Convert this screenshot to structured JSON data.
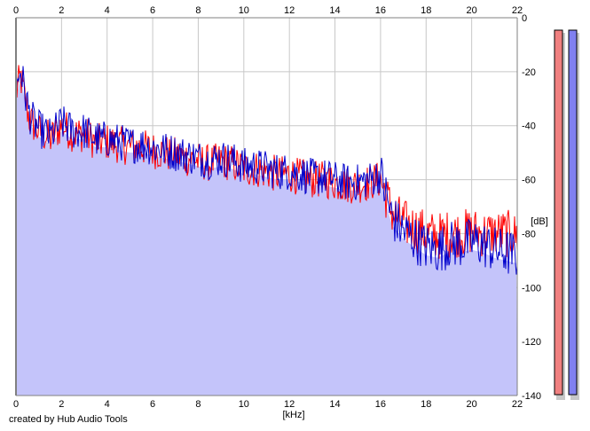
{
  "chart_data": {
    "type": "line",
    "xlabel": "[kHz]",
    "ylabel": "[dB]",
    "xlim": [
      0,
      22
    ],
    "ylim": [
      -140,
      0
    ],
    "xticks": [
      0,
      2,
      4,
      6,
      8,
      10,
      12,
      14,
      16,
      18,
      20,
      22
    ],
    "xtick_labels": [
      "0",
      "2",
      "4",
      "6",
      "8",
      "10",
      "12",
      "14",
      "16",
      "18",
      "20",
      "22"
    ],
    "yticks": [
      0,
      -20,
      -40,
      -60,
      -80,
      -100,
      -120,
      -140
    ],
    "ytick_labels": [
      "0",
      "-20",
      "-40",
      "-60",
      "-80",
      "-100",
      "-120",
      "-140"
    ],
    "grid": true,
    "fill_color": "#c4c4fa",
    "series": [
      {
        "color": "#ff0000",
        "x": [
          0.0,
          0.2,
          0.4,
          0.6,
          0.8,
          1.0,
          1.5,
          2.0,
          2.5,
          3.0,
          3.5,
          4.0,
          4.5,
          5.0,
          5.5,
          6.0,
          6.5,
          7.0,
          7.5,
          8.0,
          8.5,
          9.0,
          9.5,
          10.0,
          10.5,
          11.0,
          11.5,
          12.0,
          12.5,
          13.0,
          13.5,
          14.0,
          14.5,
          15.0,
          15.5,
          16.0,
          16.5,
          17.0,
          17.5,
          18.0,
          18.5,
          19.0,
          19.5,
          20.0,
          20.5,
          21.0,
          21.5,
          22.0
        ],
        "y": [
          -28,
          -22,
          -30,
          -38,
          -40,
          -42,
          -45,
          -40,
          -43,
          -43,
          -46,
          -46,
          -47,
          -48,
          -48,
          -49,
          -50,
          -51,
          -52,
          -53,
          -54,
          -53,
          -54,
          -56,
          -56,
          -57,
          -58,
          -58,
          -59,
          -60,
          -60,
          -61,
          -62,
          -62,
          -61,
          -60,
          -72,
          -76,
          -78,
          -80,
          -81,
          -80,
          -80,
          -79,
          -80,
          -80,
          -80,
          -81
        ]
      },
      {
        "color": "#0000cc",
        "x": [
          0.0,
          0.2,
          0.4,
          0.6,
          0.8,
          1.0,
          1.5,
          2.0,
          2.5,
          3.0,
          3.5,
          4.0,
          4.5,
          5.0,
          5.5,
          6.0,
          6.5,
          7.0,
          7.5,
          8.0,
          8.5,
          9.0,
          9.5,
          10.0,
          10.5,
          11.0,
          11.5,
          12.0,
          12.5,
          13.0,
          13.5,
          14.0,
          14.5,
          15.0,
          15.5,
          16.0,
          16.5,
          17.0,
          17.5,
          18.0,
          18.5,
          19.0,
          19.5,
          20.0,
          20.5,
          21.0,
          21.5,
          22.0
        ],
        "y": [
          -27,
          -19,
          -28,
          -36,
          -39,
          -41,
          -44,
          -39,
          -42,
          -42,
          -45,
          -45,
          -46,
          -47,
          -47,
          -48,
          -49,
          -50,
          -51,
          -52,
          -53,
          -52,
          -53,
          -55,
          -55,
          -56,
          -57,
          -57,
          -58,
          -59,
          -59,
          -60,
          -61,
          -61,
          -60,
          -58,
          -74,
          -79,
          -82,
          -85,
          -86,
          -84,
          -84,
          -83,
          -84,
          -86,
          -87,
          -88
        ]
      }
    ],
    "level_meters": [
      {
        "color": "#f08080"
      },
      {
        "color": "#8080f0"
      }
    ]
  },
  "credit": "created by Hub Audio Tools"
}
